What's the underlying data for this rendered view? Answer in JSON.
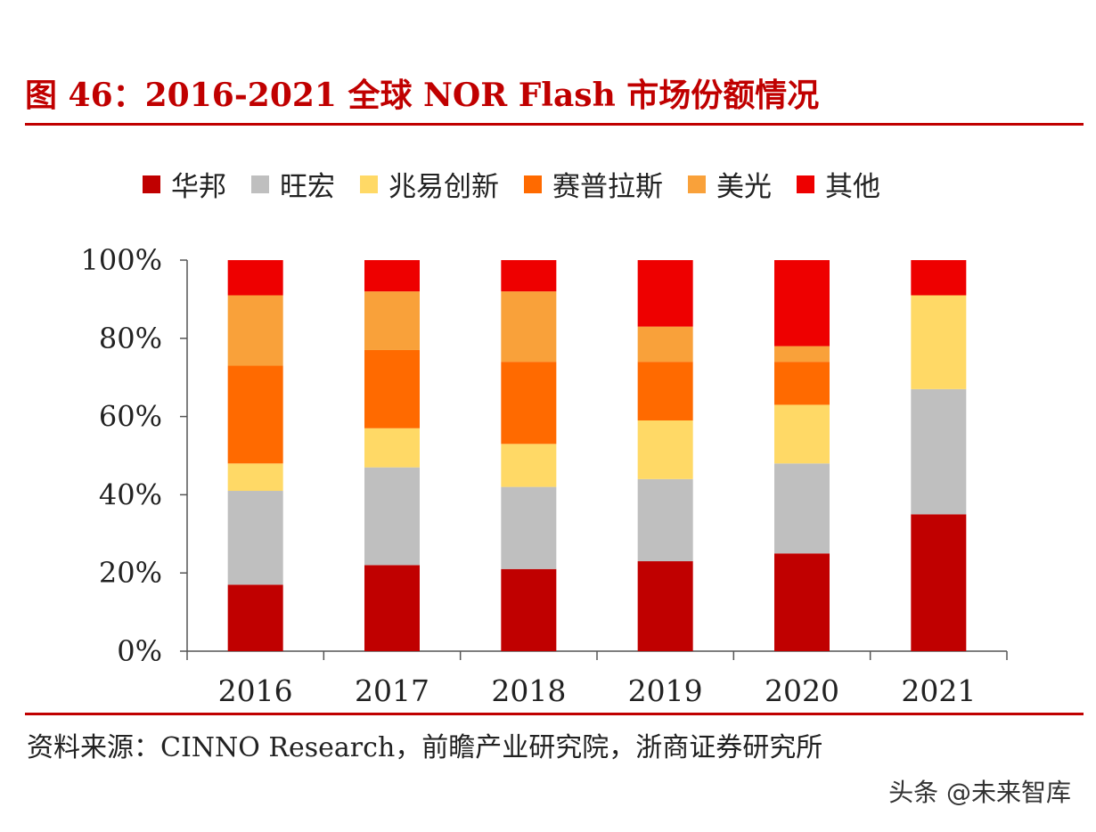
{
  "title": "图 46：2016-2021 全球 NOR Flash 市场份额情况",
  "source": "资料来源：CINNO Research，前瞻产业研究院，浙商证券研究所",
  "watermark": "头条 @未来智库",
  "colors": {
    "title": "#c00000",
    "rule": "#c00000"
  },
  "chart_data": {
    "type": "bar",
    "stacked": true,
    "categories": [
      "2016",
      "2017",
      "2018",
      "2019",
      "2020",
      "2021"
    ],
    "ylim": [
      0,
      100
    ],
    "yticks": [
      "0%",
      "20%",
      "40%",
      "60%",
      "80%",
      "100%"
    ],
    "legend_position": "top",
    "grid": false,
    "series": [
      {
        "name": "华邦",
        "color": "#c00000",
        "values": [
          17,
          22,
          21,
          23,
          25,
          35
        ]
      },
      {
        "name": "旺宏",
        "color": "#bfbfbf",
        "values": [
          24,
          25,
          21,
          21,
          23,
          32
        ]
      },
      {
        "name": "兆易创新",
        "color": "#ffd966",
        "values": [
          7,
          10,
          11,
          15,
          15,
          24
        ]
      },
      {
        "name": "赛普拉斯",
        "color": "#ff6a00",
        "values": [
          25,
          20,
          21,
          15,
          11,
          0
        ]
      },
      {
        "name": "美光",
        "color": "#f9a13a",
        "values": [
          18,
          15,
          18,
          9,
          4,
          0
        ]
      },
      {
        "name": "其他",
        "color": "#ee0000",
        "values": [
          9,
          8,
          8,
          17,
          22,
          9
        ]
      }
    ]
  }
}
